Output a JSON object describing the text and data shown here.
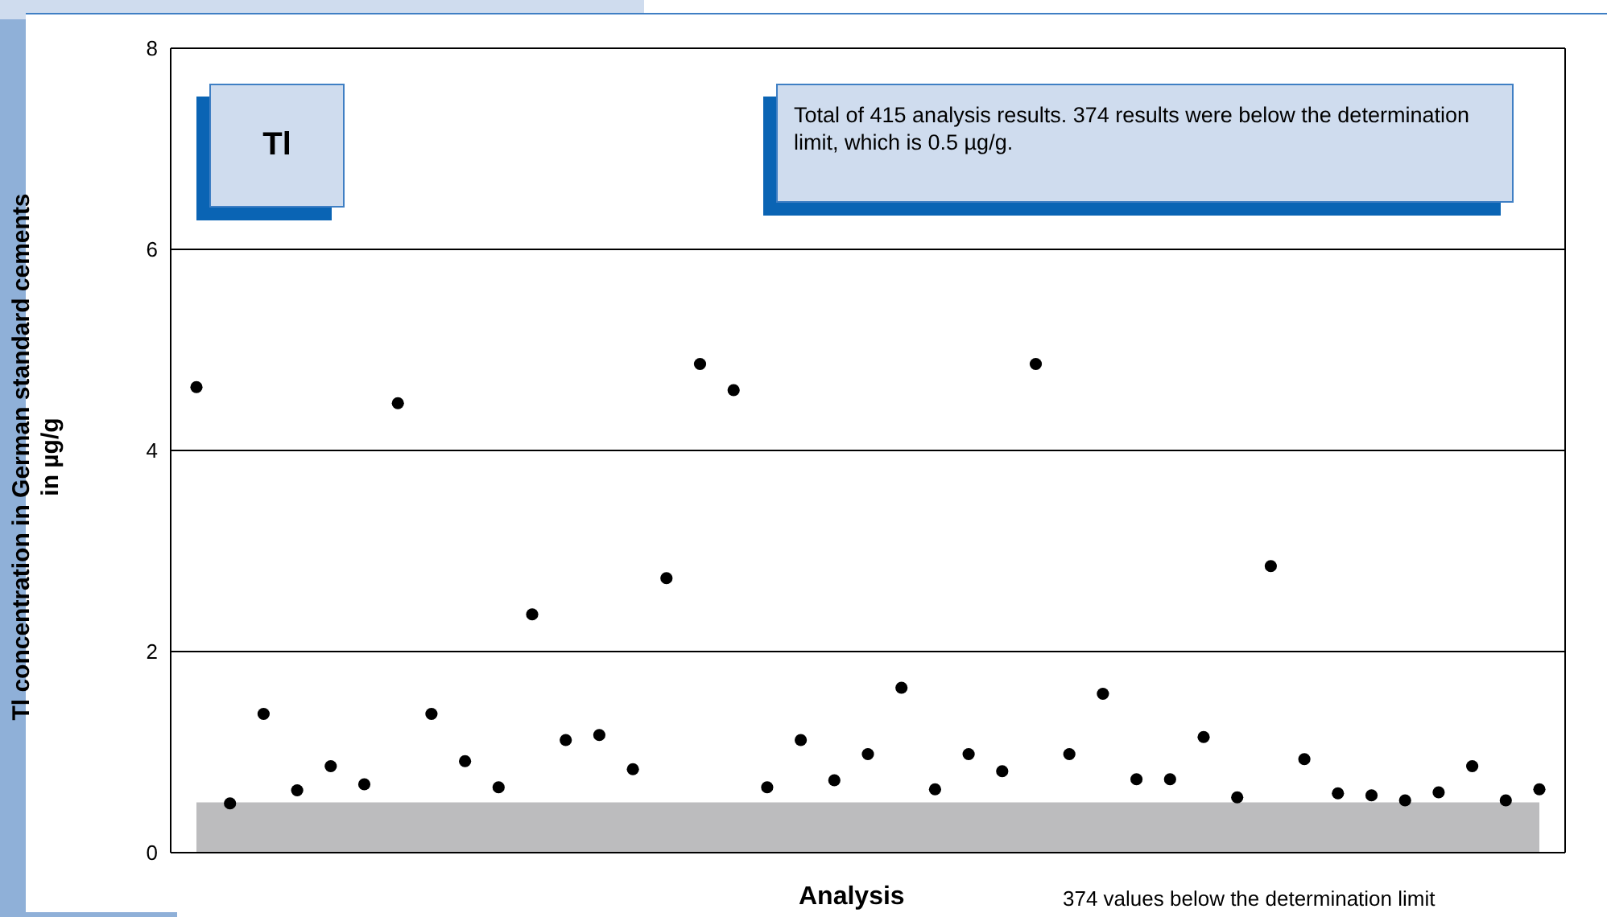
{
  "chart_data": {
    "type": "scatter",
    "title": "Tl",
    "xlabel": "Analysis",
    "ylabel": "Tl concentration in German standard cements in µg/g",
    "annotations": [
      "Total of 415 analysis results. 374 results were below the determination limit, which is 0.5 µg/g.",
      "374 values below the determination limit"
    ],
    "categories": [
      null,
      null,
      null,
      null,
      null,
      null,
      null,
      null,
      null,
      null,
      null,
      null,
      null,
      null,
      null,
      null,
      null,
      null,
      null,
      null,
      null,
      null,
      null,
      null,
      null,
      null,
      null,
      null,
      null,
      null,
      null,
      null,
      null,
      null,
      null,
      null,
      null,
      null,
      null,
      null,
      null
    ],
    "series": [
      {
        "color": "#000000",
        "values": [
          4.63,
          0.49,
          1.38,
          0.62,
          0.86,
          0.68,
          4.47,
          1.38,
          0.91,
          0.65,
          2.37,
          1.12,
          1.17,
          0.83,
          2.73,
          4.86,
          4.6,
          0.65,
          1.12,
          0.72,
          0.98,
          1.64,
          0.63,
          0.98,
          0.81,
          4.86,
          0.98,
          1.58,
          0.73,
          0.73,
          1.15,
          0.55,
          2.85,
          0.93,
          0.59,
          0.57,
          0.52,
          0.6,
          0.86,
          0.52,
          0.63
        ]
      }
    ],
    "ylim": [
      0,
      8
    ],
    "yticks": [
      0,
      2,
      4,
      6,
      8
    ],
    "grid": "y",
    "marker": "circle",
    "legend": false,
    "bands": [
      {
        "axis": "y",
        "from": 0,
        "to": 0.5,
        "color": "#bcbcbe"
      }
    ]
  }
}
